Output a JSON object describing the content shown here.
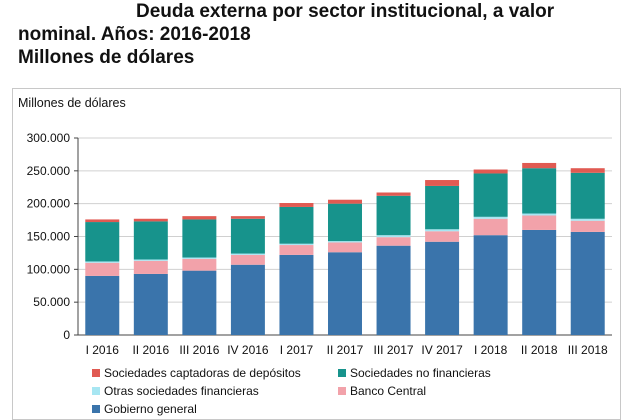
{
  "title": {
    "line1": "Deuda externa por sector institucional, a valor",
    "line2": "nominal. Años: 2016-2018",
    "line3": "Millones de dólares"
  },
  "chart_data": {
    "type": "bar",
    "stacked": true,
    "ylabel": "Millones de dólares",
    "ylim": [
      0,
      300000
    ],
    "yticks": [
      "0",
      "50.000",
      "100.000",
      "150.000",
      "200.000",
      "250.000",
      "300.000"
    ],
    "grid": true,
    "legend_position": "bottom",
    "categories": [
      "I 2016",
      "II 2016",
      "III 2016",
      "IV 2016",
      "I 2017",
      "II 2017",
      "III 2017",
      "IV 2017",
      "I 2018",
      "II 2018",
      "III 2018"
    ],
    "series": [
      {
        "name": "Gobierno general",
        "color": "#3a74ab",
        "values": [
          90000,
          93000,
          98000,
          107000,
          122000,
          126000,
          136000,
          142000,
          152000,
          160000,
          157000
        ]
      },
      {
        "name": "Banco Central",
        "color": "#f2a2aa",
        "values": [
          20000,
          20000,
          18000,
          15000,
          15000,
          15000,
          13000,
          16000,
          25000,
          22000,
          17000
        ]
      },
      {
        "name": "Otras sociedades financieras",
        "color": "#a7e6f2",
        "values": [
          2000,
          2000,
          2000,
          2000,
          2000,
          2000,
          3000,
          3000,
          3000,
          3000,
          3000
        ]
      },
      {
        "name": "Sociedades no financieras",
        "color": "#17938c",
        "values": [
          60000,
          58000,
          58000,
          53000,
          56000,
          57000,
          60000,
          66000,
          66000,
          69000,
          70000
        ]
      },
      {
        "name": "Sociedades captadoras de depósitos",
        "color": "#e05a52",
        "values": [
          4000,
          4000,
          5000,
          4000,
          6000,
          6000,
          5000,
          9000,
          6000,
          8000,
          7000
        ]
      }
    ]
  }
}
